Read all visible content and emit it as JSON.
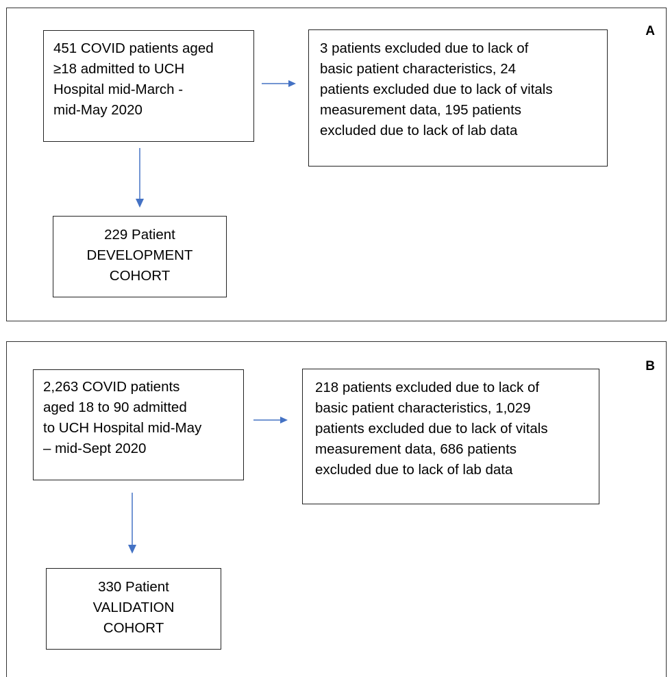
{
  "panel_a": {
    "label": "A",
    "start_box": "451 COVID patients aged\n≥18 admitted to UCH\nHospital mid-March -\nmid-May 2020",
    "excluded_box": "3 patients excluded due to lack of\nbasic patient characteristics, 24\npatients excluded due to lack of vitals\nmeasurement data, 195 patients\nexcluded due to lack of lab data",
    "cohort_box": "229 Patient\nDEVELOPMENT\nCOHORT"
  },
  "panel_b": {
    "label": "B",
    "start_box": "2,263 COVID patients\naged 18 to 90 admitted\nto UCH Hospital mid-May\n– mid-Sept 2020",
    "excluded_box": "218 patients excluded due to lack of\nbasic patient characteristics, 1,029\npatients excluded due to lack of vitals\nmeasurement data, 686 patients\nexcluded due to lack of lab data",
    "cohort_box": "330 Patient\nVALIDATION\nCOHORT"
  },
  "colors": {
    "arrow": "#4472C4",
    "border": "#222222"
  }
}
